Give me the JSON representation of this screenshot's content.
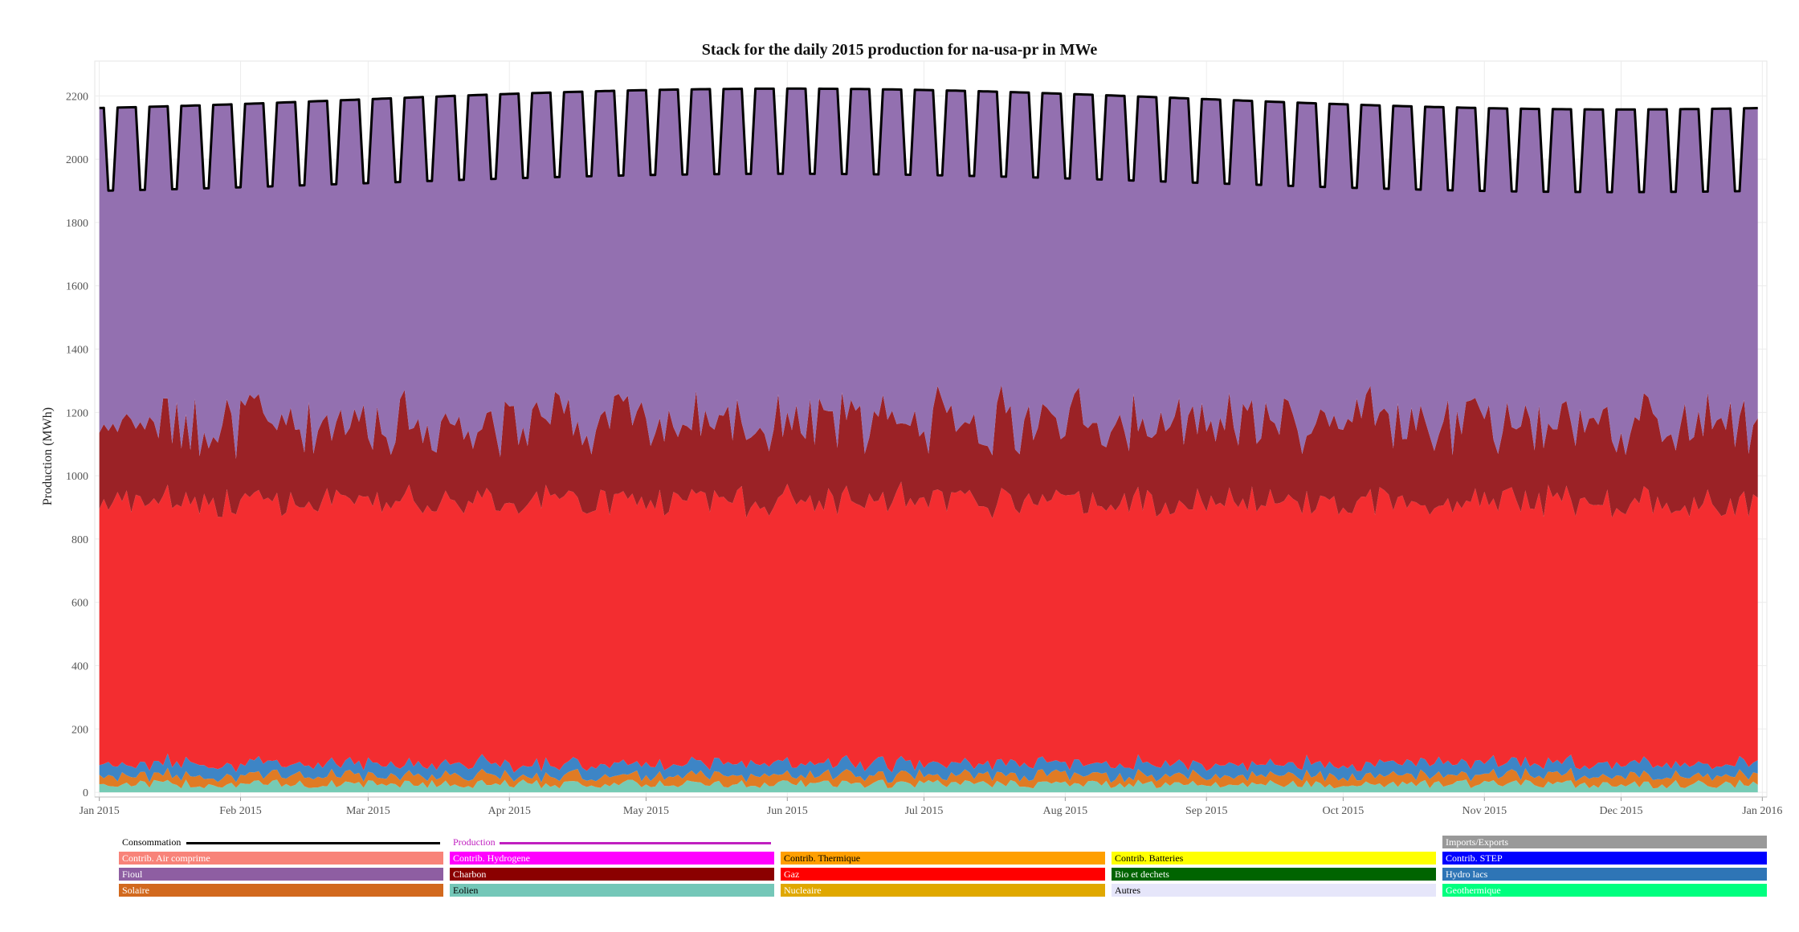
{
  "chart_data": {
    "type": "area",
    "title": "Stack for the daily 2015 production for na-usa-pr in MWe",
    "xlabel": "",
    "ylabel": "Production (MWh)",
    "ylim": [
      -15,
      2310
    ],
    "yticks": [
      0,
      200,
      400,
      600,
      800,
      1000,
      1200,
      1400,
      1600,
      1800,
      2000,
      2200
    ],
    "xticks": [
      {
        "day": 0,
        "label": "Jan 2015"
      },
      {
        "day": 31,
        "label": "Feb 2015"
      },
      {
        "day": 59,
        "label": "Mar 2015"
      },
      {
        "day": 90,
        "label": "Apr 2015"
      },
      {
        "day": 120,
        "label": "May 2015"
      },
      {
        "day": 151,
        "label": "Jun 2015"
      },
      {
        "day": 181,
        "label": "Jul 2015"
      },
      {
        "day": 212,
        "label": "Aug 2015"
      },
      {
        "day": 243,
        "label": "Sep 2015"
      },
      {
        "day": 273,
        "label": "Oct 2015"
      },
      {
        "day": 304,
        "label": "Nov 2015"
      },
      {
        "day": 334,
        "label": "Dec 2015"
      },
      {
        "day": 365,
        "label": "Jan 2016"
      }
    ],
    "x_range_days": [
      -1,
      366
    ],
    "period": {
      "start": "Jan 1 2015",
      "end": "Dec 31 2015",
      "days": 365
    },
    "grid": true,
    "legend_position": "bottom",
    "series_shapes": {
      "Eolien": {
        "base": 26,
        "amp": 14
      },
      "Solaire": {
        "base": 28,
        "amp": 12
      },
      "Hydro lacs": {
        "base": 38,
        "amp": 10
      },
      "Gaz": {
        "base": 830,
        "amp": 40
      },
      "Charbon": {
        "base": 250,
        "amp": 80
      },
      "Fioul": {
        "weekday": 2190,
        "weekend": 1925
      }
    },
    "stack_order": [
      "Eolien",
      "Solaire",
      "Hydro lacs",
      "Gaz",
      "Charbon",
      "Fioul"
    ],
    "consumption_line": {
      "name": "Consommation",
      "weekday": 2190,
      "weekend": 1925,
      "color": "#000000"
    },
    "series_colors": {
      "Eolien": "#76cbb5",
      "Solaire": "#e07b24",
      "Hydro lacs": "#3d85c6",
      "Gaz": "#f32d30",
      "Charbon": "#9b2226",
      "Fioul": "#9370b0"
    }
  },
  "legend": {
    "line_items": [
      {
        "label": "Consommation",
        "color": "#000000",
        "text_color": "#000000"
      },
      {
        "label": "Production",
        "color": "#c020c0",
        "text_color": "#c020c0"
      }
    ],
    "rows": [
      [
        null,
        null,
        null,
        null,
        {
          "label": "Imports/Exports",
          "color": "#999999",
          "text": "#ffffff"
        }
      ],
      [
        {
          "label": "Contrib. Air comprime",
          "color": "#f88379",
          "text": "#ffffff"
        },
        {
          "label": "Contrib. Hydrogene",
          "color": "#ff00ff",
          "text": "#ffffff"
        },
        {
          "label": "Contrib. Thermique",
          "color": "#ff9f00",
          "text": "#000000"
        },
        {
          "label": "Contrib. Batteries",
          "color": "#ffff00",
          "text": "#000000"
        },
        {
          "label": "Contrib. STEP",
          "color": "#0000ff",
          "text": "#ffffff"
        }
      ],
      [
        {
          "label": "Fioul",
          "color": "#8e5ea2",
          "text": "#ffffff"
        },
        {
          "label": "Charbon",
          "color": "#8b0000",
          "text": "#ffffff"
        },
        {
          "label": "Gaz",
          "color": "#ff0000",
          "text": "#ffffff"
        },
        {
          "label": "Bio et dechets",
          "color": "#006400",
          "text": "#ffffff"
        },
        {
          "label": "Hydro lacs",
          "color": "#2e75b6",
          "text": "#ffffff"
        }
      ],
      [
        {
          "label": "Solaire",
          "color": "#d2691e",
          "text": "#ffffff"
        },
        {
          "label": "Eolien",
          "color": "#74c7b8",
          "text": "#000000"
        },
        {
          "label": "Nucleaire",
          "color": "#e0a800",
          "text": "#ffffff"
        },
        {
          "label": "Autres",
          "color": "#e6e6fa",
          "text": "#000000"
        },
        {
          "label": "Geothermique",
          "color": "#00ff7f",
          "text": "#ffffff"
        }
      ]
    ]
  }
}
